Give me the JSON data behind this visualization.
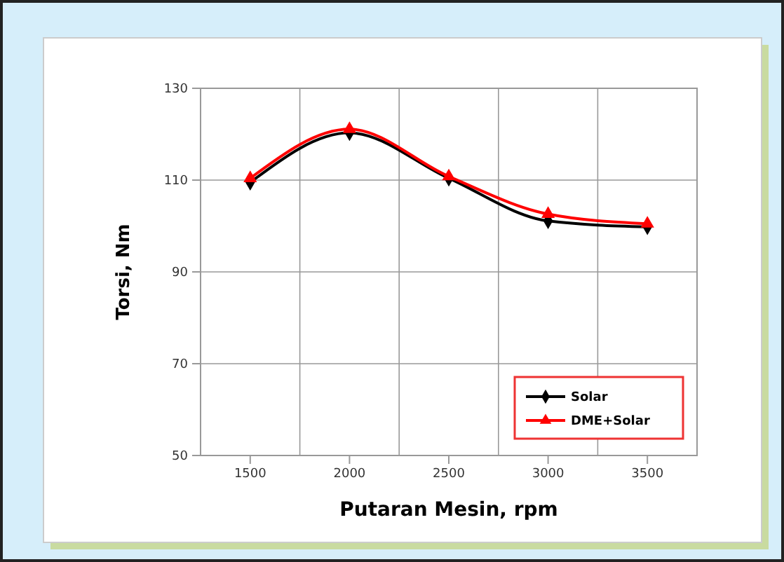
{
  "chart_data": {
    "type": "line",
    "xlabel": "Putaran Mesin, rpm",
    "ylabel": "Torsi, Nm",
    "categories": [
      "1500",
      "2000",
      "2500",
      "3000",
      "3500"
    ],
    "series": [
      {
        "name": "Solar",
        "color": "#000000",
        "marker": "diamond",
        "values": [
          109.5,
          120.3,
          110.4,
          101.1,
          99.8
        ]
      },
      {
        "name": "DME+Solar",
        "color": "#ff0000",
        "marker": "triangle",
        "values": [
          110.4,
          121.1,
          110.8,
          102.6,
          100.5
        ]
      }
    ],
    "ylim": [
      50,
      130
    ],
    "yticks": [
      50,
      70,
      90,
      110,
      130
    ],
    "grid": true,
    "legend": "bottom right",
    "line_style": "solid"
  }
}
